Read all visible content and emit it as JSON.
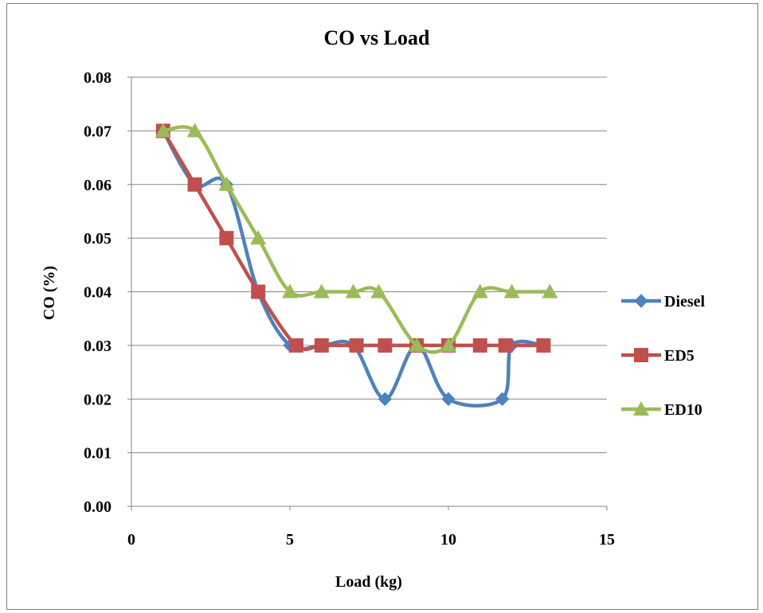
{
  "chart_data": {
    "type": "line",
    "title": "CO vs Load",
    "xlabel": "Load (kg)",
    "ylabel": "CO (%)",
    "xlim": [
      0,
      15
    ],
    "ylim": [
      0,
      0.08
    ],
    "x_ticks": [
      "0",
      "5",
      "10",
      "15"
    ],
    "y_ticks": [
      "0.00",
      "0.01",
      "0.02",
      "0.03",
      "0.04",
      "0.05",
      "0.06",
      "0.07",
      "0.08"
    ],
    "grid": "horizontal",
    "legend_position": "right",
    "smooth": true,
    "series": [
      {
        "name": "Diesel",
        "color": "#4f81bd",
        "marker": "diamond",
        "points": [
          [
            1,
            0.07
          ],
          [
            2,
            0.06
          ],
          [
            3,
            0.06
          ],
          [
            4,
            0.04
          ],
          [
            5,
            0.03
          ],
          [
            6,
            0.03
          ],
          [
            7,
            0.03
          ],
          [
            8,
            0.02
          ],
          [
            9,
            0.03
          ],
          [
            10,
            0.02
          ],
          [
            11.7,
            0.02
          ],
          [
            12,
            0.03
          ],
          [
            13,
            0.03
          ]
        ]
      },
      {
        "name": "ED5",
        "color": "#c0504d",
        "marker": "square",
        "points": [
          [
            1,
            0.07
          ],
          [
            2,
            0.06
          ],
          [
            3,
            0.05
          ],
          [
            4,
            0.04
          ],
          [
            5.2,
            0.03
          ],
          [
            6,
            0.03
          ],
          [
            7.1,
            0.03
          ],
          [
            8,
            0.03
          ],
          [
            9,
            0.03
          ],
          [
            10,
            0.03
          ],
          [
            11,
            0.03
          ],
          [
            11.8,
            0.03
          ],
          [
            13,
            0.03
          ]
        ]
      },
      {
        "name": "ED10",
        "color": "#9bbb59",
        "marker": "triangle",
        "points": [
          [
            1,
            0.07
          ],
          [
            2,
            0.07
          ],
          [
            3,
            0.06
          ],
          [
            4,
            0.05
          ],
          [
            5,
            0.04
          ],
          [
            6,
            0.04
          ],
          [
            7,
            0.04
          ],
          [
            7.8,
            0.04
          ],
          [
            9,
            0.03
          ],
          [
            10,
            0.03
          ],
          [
            11,
            0.04
          ],
          [
            12,
            0.04
          ],
          [
            13.2,
            0.04
          ]
        ]
      }
    ]
  }
}
